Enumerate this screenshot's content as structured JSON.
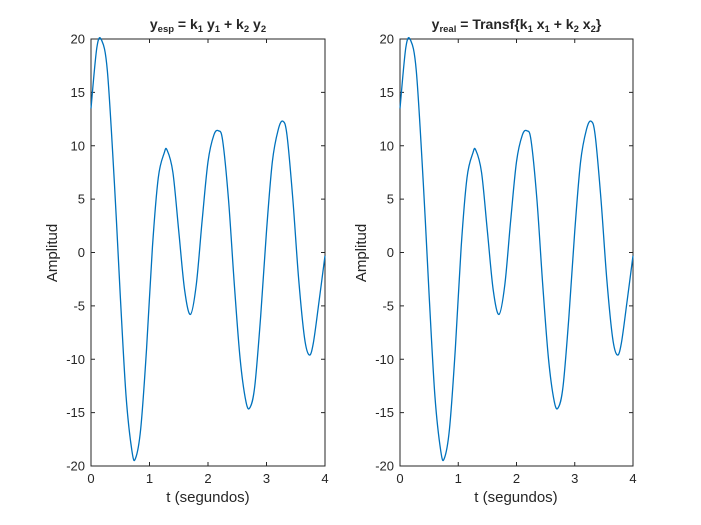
{
  "chart_data": [
    {
      "type": "line",
      "title_parts": [
        {
          "text": "y",
          "sub": false
        },
        {
          "text": "esp",
          "sub": true
        },
        {
          "text": " = k",
          "sub": false
        },
        {
          "text": "1",
          "sub": true
        },
        {
          "text": " y",
          "sub": false
        },
        {
          "text": "1",
          "sub": true
        },
        {
          "text": " + k",
          "sub": false
        },
        {
          "text": "2",
          "sub": true
        },
        {
          "text": " y",
          "sub": false
        },
        {
          "text": "2",
          "sub": true
        }
      ],
      "xlabel": "t (segundos)",
      "ylabel": "Amplitud",
      "xlim": [
        0,
        4
      ],
      "ylim": [
        -20,
        20
      ],
      "xticks": [
        0,
        1,
        2,
        3,
        4
      ],
      "yticks": [
        -20,
        -15,
        -10,
        -5,
        0,
        5,
        10,
        15,
        20
      ],
      "grid": false,
      "series": [
        {
          "color": "#0072bd",
          "points": [
            [
              0,
              13.5
            ],
            [
              0.1,
              19.2
            ],
            [
              0.18,
              19.9
            ],
            [
              0.28,
              17.0
            ],
            [
              0.4,
              6.5
            ],
            [
              0.5,
              -4.0
            ],
            [
              0.6,
              -13.5
            ],
            [
              0.7,
              -18.6
            ],
            [
              0.76,
              -19.3
            ],
            [
              0.85,
              -16.5
            ],
            [
              0.95,
              -9.0
            ],
            [
              1.05,
              0.5
            ],
            [
              1.15,
              7.0
            ],
            [
              1.25,
              9.3
            ],
            [
              1.3,
              9.6
            ],
            [
              1.4,
              7.5
            ],
            [
              1.5,
              2.0
            ],
            [
              1.6,
              -3.5
            ],
            [
              1.7,
              -5.8
            ],
            [
              1.8,
              -3.0
            ],
            [
              1.9,
              3.0
            ],
            [
              2.0,
              8.5
            ],
            [
              2.1,
              11.0
            ],
            [
              2.18,
              11.4
            ],
            [
              2.25,
              10.5
            ],
            [
              2.35,
              5.0
            ],
            [
              2.45,
              -3.0
            ],
            [
              2.55,
              -10.0
            ],
            [
              2.65,
              -14.0
            ],
            [
              2.72,
              -14.5
            ],
            [
              2.8,
              -12.5
            ],
            [
              2.9,
              -6.0
            ],
            [
              3.0,
              2.0
            ],
            [
              3.1,
              8.5
            ],
            [
              3.2,
              11.5
            ],
            [
              3.28,
              12.3
            ],
            [
              3.35,
              11.0
            ],
            [
              3.45,
              5.0
            ],
            [
              3.55,
              -2.5
            ],
            [
              3.65,
              -8.0
            ],
            [
              3.73,
              -9.6
            ],
            [
              3.8,
              -8.5
            ],
            [
              3.9,
              -4.5
            ],
            [
              4.0,
              -0.3
            ]
          ]
        }
      ]
    },
    {
      "type": "line",
      "title_parts": [
        {
          "text": "y",
          "sub": false
        },
        {
          "text": "real",
          "sub": true
        },
        {
          "text": " = Transf{k",
          "sub": false
        },
        {
          "text": "1",
          "sub": true
        },
        {
          "text": " x",
          "sub": false
        },
        {
          "text": "1",
          "sub": true
        },
        {
          "text": " + k",
          "sub": false
        },
        {
          "text": "2",
          "sub": true
        },
        {
          "text": " x",
          "sub": false
        },
        {
          "text": "2",
          "sub": true
        },
        {
          "text": "}",
          "sub": false
        }
      ],
      "xlabel": "t (segundos)",
      "ylabel": "Amplitud",
      "xlim": [
        0,
        4
      ],
      "ylim": [
        -20,
        20
      ],
      "xticks": [
        0,
        1,
        2,
        3,
        4
      ],
      "yticks": [
        -20,
        -15,
        -10,
        -5,
        0,
        5,
        10,
        15,
        20
      ],
      "grid": false,
      "series": [
        {
          "color": "#0072bd",
          "points": [
            [
              0,
              13.5
            ],
            [
              0.1,
              19.2
            ],
            [
              0.18,
              19.9
            ],
            [
              0.28,
              17.0
            ],
            [
              0.4,
              6.5
            ],
            [
              0.5,
              -4.0
            ],
            [
              0.6,
              -13.5
            ],
            [
              0.7,
              -18.6
            ],
            [
              0.76,
              -19.3
            ],
            [
              0.85,
              -16.5
            ],
            [
              0.95,
              -9.0
            ],
            [
              1.05,
              0.5
            ],
            [
              1.15,
              7.0
            ],
            [
              1.25,
              9.3
            ],
            [
              1.3,
              9.6
            ],
            [
              1.4,
              7.5
            ],
            [
              1.5,
              2.0
            ],
            [
              1.6,
              -3.5
            ],
            [
              1.7,
              -5.8
            ],
            [
              1.8,
              -3.0
            ],
            [
              1.9,
              3.0
            ],
            [
              2.0,
              8.5
            ],
            [
              2.1,
              11.0
            ],
            [
              2.18,
              11.4
            ],
            [
              2.25,
              10.5
            ],
            [
              2.35,
              5.0
            ],
            [
              2.45,
              -3.0
            ],
            [
              2.55,
              -10.0
            ],
            [
              2.65,
              -14.0
            ],
            [
              2.72,
              -14.5
            ],
            [
              2.8,
              -12.5
            ],
            [
              2.9,
              -6.0
            ],
            [
              3.0,
              2.0
            ],
            [
              3.1,
              8.5
            ],
            [
              3.2,
              11.5
            ],
            [
              3.28,
              12.3
            ],
            [
              3.35,
              11.0
            ],
            [
              3.45,
              5.0
            ],
            [
              3.55,
              -2.5
            ],
            [
              3.65,
              -8.0
            ],
            [
              3.73,
              -9.6
            ],
            [
              3.8,
              -8.5
            ],
            [
              3.9,
              -4.5
            ],
            [
              4.0,
              -0.3
            ]
          ]
        }
      ]
    }
  ]
}
